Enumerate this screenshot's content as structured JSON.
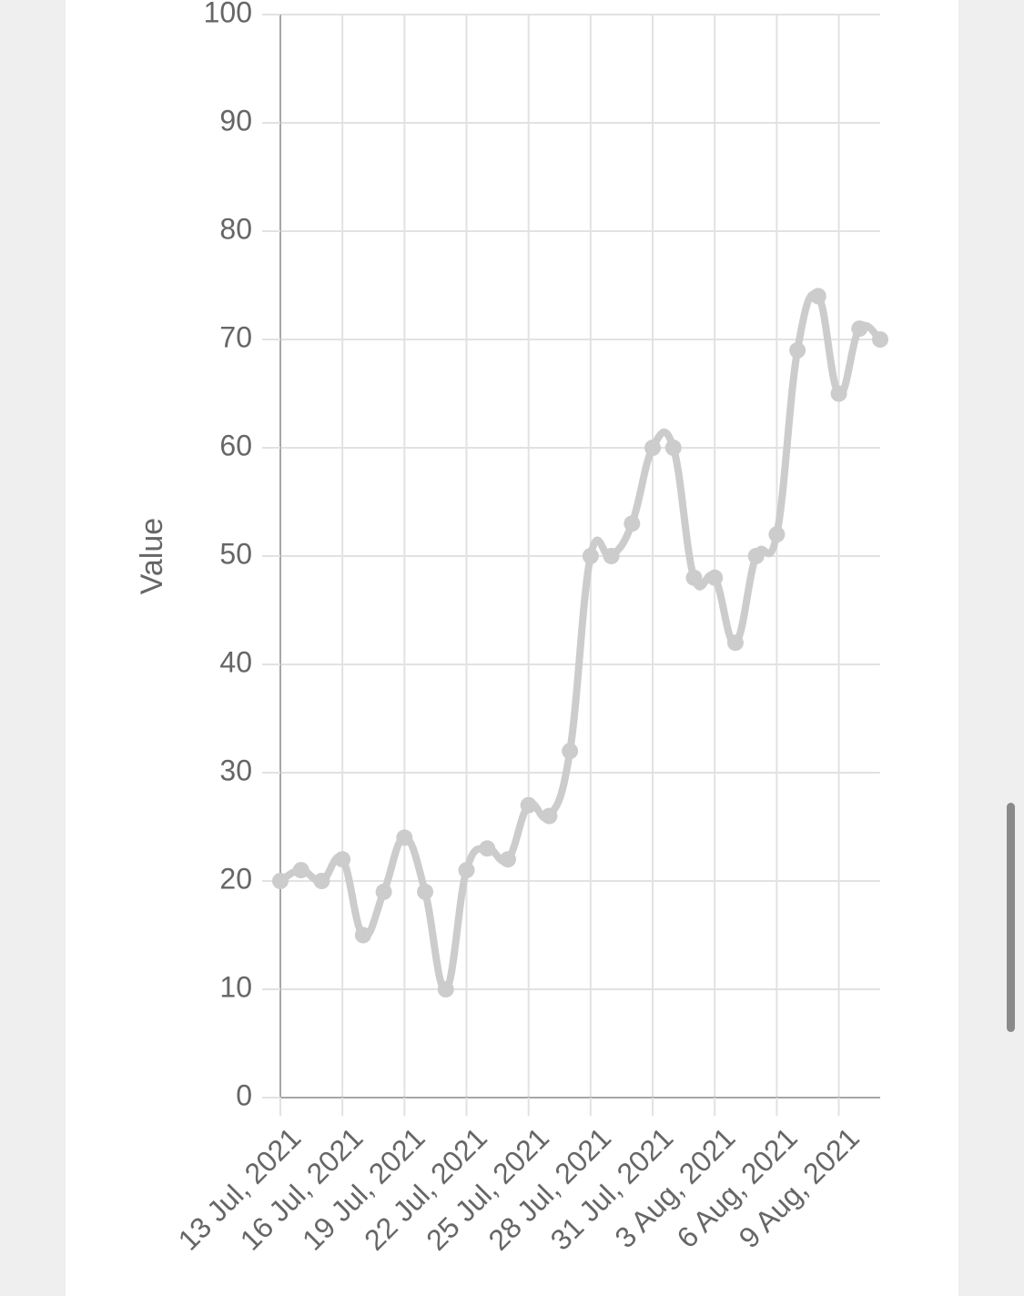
{
  "chart_data": {
    "type": "line",
    "title": "",
    "xlabel": "",
    "ylabel": "Value",
    "ylim": [
      0,
      100
    ],
    "yticks": [
      0,
      10,
      20,
      30,
      40,
      50,
      60,
      70,
      80,
      90,
      100
    ],
    "xlim": [
      "2021-07-13",
      "2021-08-11"
    ],
    "xtick_labels": [
      "13 Jul, 2021",
      "16 Jul, 2021",
      "19 Jul, 2021",
      "22 Jul, 2021",
      "25 Jul, 2021",
      "28 Jul, 2021",
      "31 Jul, 2021",
      "3 Aug, 2021",
      "6 Aug, 2021",
      "9 Aug, 2021"
    ],
    "grid": true,
    "legend": "none",
    "series": [
      {
        "color": "#cccccc",
        "x": [
          "2021-07-13",
          "2021-07-14",
          "2021-07-15",
          "2021-07-16",
          "2021-07-17",
          "2021-07-18",
          "2021-07-19",
          "2021-07-20",
          "2021-07-21",
          "2021-07-22",
          "2021-07-23",
          "2021-07-24",
          "2021-07-25",
          "2021-07-26",
          "2021-07-27",
          "2021-07-28",
          "2021-07-29",
          "2021-07-30",
          "2021-07-31",
          "2021-08-01",
          "2021-08-02",
          "2021-08-03",
          "2021-08-04",
          "2021-08-05",
          "2021-08-06",
          "2021-08-07",
          "2021-08-08",
          "2021-08-09",
          "2021-08-10",
          "2021-08-11"
        ],
        "values": [
          20,
          21,
          20,
          22,
          15,
          19,
          24,
          19,
          10,
          21,
          23,
          22,
          27,
          26,
          32,
          50,
          50,
          53,
          60,
          60,
          48,
          48,
          42,
          50,
          52,
          69,
          74,
          65,
          71,
          70
        ]
      }
    ]
  }
}
